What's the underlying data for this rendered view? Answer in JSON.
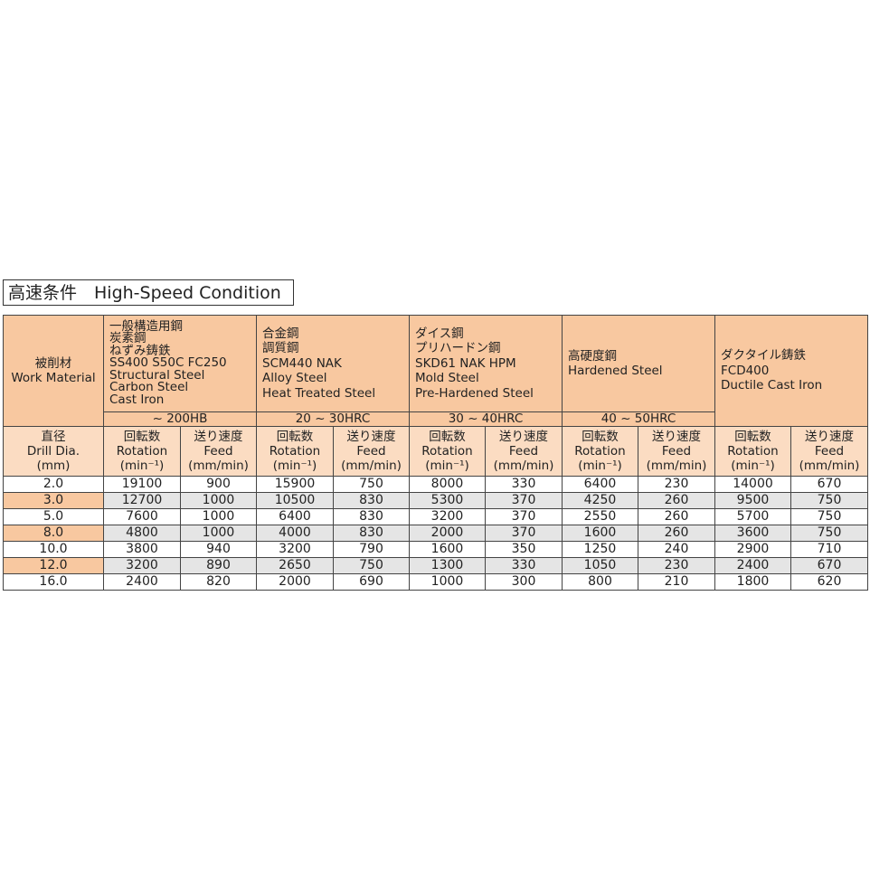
{
  "title": "高速条件　High-Speed Condition",
  "header": {
    "work_material_jp": "被削材",
    "work_material_en": "Work Material",
    "materials": [
      {
        "lines": [
          "一般構造用鋼",
          "炭素鋼",
          "ねずみ鋳鉄",
          "SS400 S50C FC250",
          "Structural Steel",
          "Carbon Steel",
          "Cast Iron"
        ],
        "hardness": "~ 200HB"
      },
      {
        "lines": [
          "合金鋼",
          "調質鋼",
          "SCM440 NAK",
          "Alloy Steel",
          "Heat Treated Steel"
        ],
        "hardness": "20 ~ 30HRC"
      },
      {
        "lines": [
          "ダイス鋼",
          "プリハードン鋼",
          "SKD61 NAK HPM",
          "Mold Steel",
          "Pre-Hardened Steel"
        ],
        "hardness": "30 ~ 40HRC"
      },
      {
        "lines": [
          "高硬度鋼",
          "Hardened Steel"
        ],
        "hardness": "40 ~ 50HRC"
      },
      {
        "lines": [
          "ダクタイル鋳鉄",
          "FCD400",
          "Ductile Cast Iron"
        ],
        "hardness": ""
      }
    ],
    "dia": [
      "直径",
      "Drill Dia.",
      "(mm)"
    ],
    "rotation": [
      "回転数",
      "Rotation",
      "(min⁻¹)"
    ],
    "feed": [
      "送り速度",
      "Feed",
      "(mm/min)"
    ]
  },
  "rows": [
    [
      "2.0",
      "19100",
      "900",
      "15900",
      "750",
      "8000",
      "330",
      "6400",
      "230",
      "14000",
      "670"
    ],
    [
      "3.0",
      "12700",
      "1000",
      "10500",
      "830",
      "5300",
      "370",
      "4250",
      "260",
      "9500",
      "750"
    ],
    [
      "5.0",
      "7600",
      "1000",
      "6400",
      "830",
      "3200",
      "370",
      "2550",
      "260",
      "5700",
      "750"
    ],
    [
      "8.0",
      "4800",
      "1000",
      "4000",
      "830",
      "2000",
      "370",
      "1600",
      "260",
      "3600",
      "750"
    ],
    [
      "10.0",
      "3800",
      "940",
      "3200",
      "790",
      "1600",
      "350",
      "1250",
      "240",
      "2900",
      "710"
    ],
    [
      "12.0",
      "3200",
      "890",
      "2650",
      "750",
      "1300",
      "330",
      "1050",
      "230",
      "2400",
      "670"
    ],
    [
      "16.0",
      "2400",
      "820",
      "2000",
      "690",
      "1000",
      "300",
      "800",
      "210",
      "1800",
      "620"
    ]
  ]
}
